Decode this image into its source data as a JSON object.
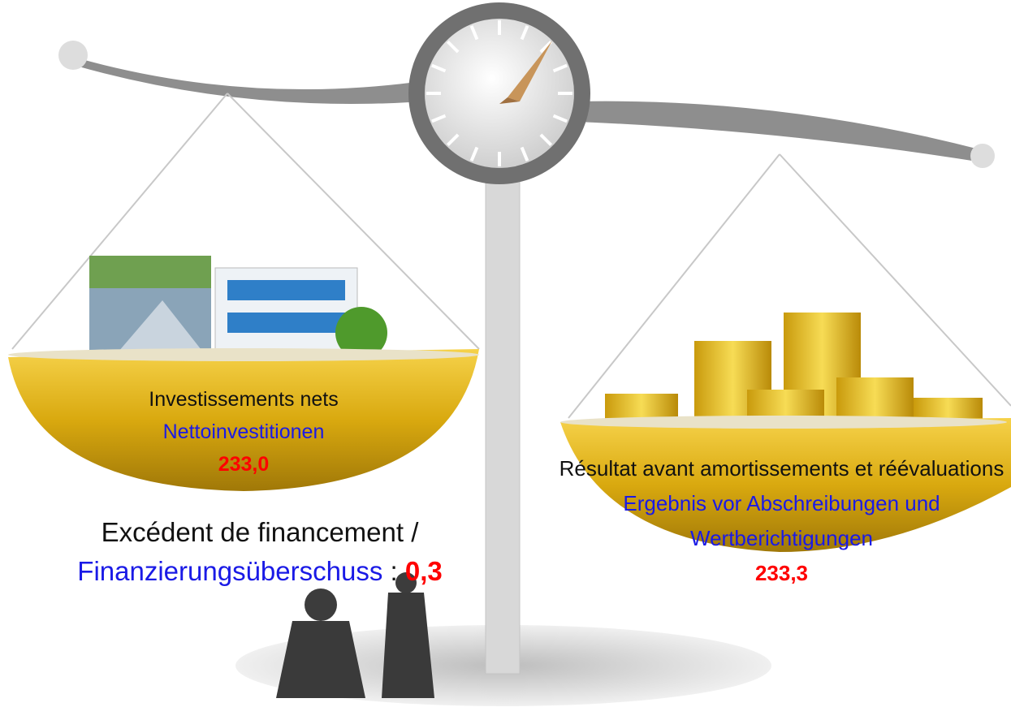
{
  "left": {
    "label_fr": "Investissements nets",
    "label_de": "Nettoinvestitionen",
    "value": "233,0"
  },
  "center": {
    "label_fr": "Excédent de financement /",
    "label_de": "Finanzierungsüberschuss",
    "separator": ":",
    "value": "0,3"
  },
  "right": {
    "label_fr": "Résultat avant amortissements et réévaluations",
    "label_de": "Ergebnis vor Abschreibungen und Wertberichtigungen",
    "value": "233,3"
  }
}
